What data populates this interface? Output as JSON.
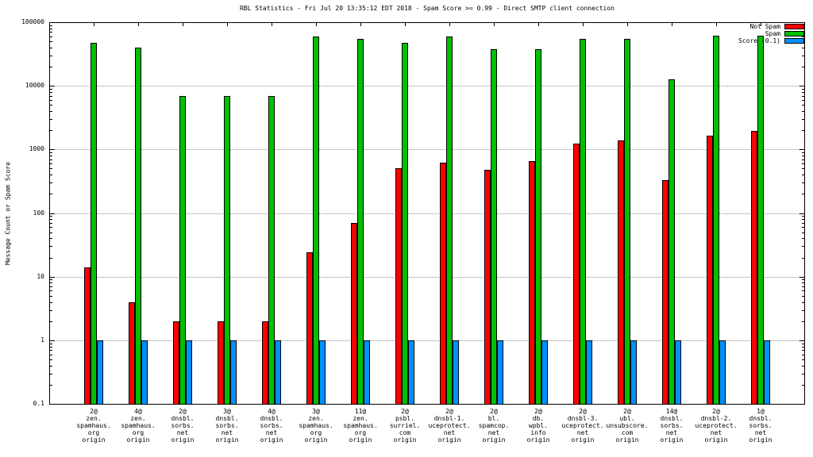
{
  "chart_data": {
    "type": "bar",
    "title": "RBL Statistics - Fri Jul 20 13:35:12 EDT 2018 - Spam Score >= 0.99 - Direct SMTP client connection",
    "ylabel": "Message Count or Spam Score",
    "xlabel": "",
    "y_scale": "log",
    "ylim": [
      0.1,
      100000
    ],
    "y_ticks": [
      "0.1",
      "1",
      "10",
      "100",
      "1000",
      "10000",
      "100000"
    ],
    "grid": true,
    "legend_position": "top-right",
    "categories": [
      "2@\nzen.\nspamhaus.\norg\norigin",
      "4@\nzen.\nspamhaus.\norg\norigin",
      "2@\ndnsbl.\nsorbs.\nnet\norigin",
      "3@\ndnsbl.\nsorbs.\nnet\norigin",
      "4@\ndnsbl.\nsorbs.\nnet\norigin",
      "3@\nzen.\nspamhaus.\norg\norigin",
      "11@\nzen.\nspamhaus.\norg\norigin",
      "2@\npsbl.\nsurriel.\ncom\norigin",
      "2@\ndnsbl-1.\nuceprotect.\nnet\norigin",
      "2@\nbl.\nspamcop.\nnet\norigin",
      "2@\ndb.\nwpbl.\ninfo\norigin",
      "2@\ndnsbl-3.\nuceprotect.\nnet\norigin",
      "2@\nubl.\nunsubscore.\ncom\norigin",
      "14@\ndnsbl.\nsorbs.\nnet\norigin",
      "2@\ndnsbl-2.\nuceprotect.\nnet\norigin",
      "1@\ndnsbl.\nsorbs.\nnet\norigin"
    ],
    "series": [
      {
        "name": "Not Spam",
        "color": "#ff0000",
        "values": [
          14,
          4,
          2,
          2,
          2,
          24,
          70,
          500,
          620,
          480,
          660,
          1250,
          1400,
          330,
          1650,
          1950
        ]
      },
      {
        "name": "Spam",
        "color": "#00c000",
        "values": [
          48000,
          40000,
          7000,
          7000,
          7000,
          60000,
          55000,
          48000,
          60000,
          38000,
          38000,
          55000,
          55000,
          12500,
          62000,
          62000
        ]
      },
      {
        "name": "Score (0.1)",
        "color": "#0090ff",
        "values": [
          1,
          1,
          1,
          1,
          1,
          1,
          1,
          1,
          1,
          1,
          1,
          1,
          1,
          1,
          1,
          1
        ]
      }
    ]
  }
}
